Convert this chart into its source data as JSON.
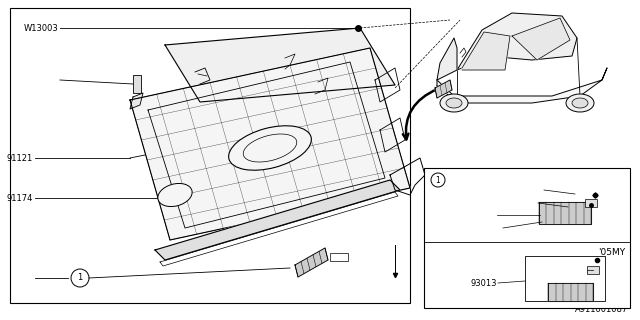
{
  "bg_color": "#ffffff",
  "line_color": "#000000",
  "diagram_id": "A911001087",
  "fig_w": 6.4,
  "fig_h": 3.2,
  "dpi": 100
}
